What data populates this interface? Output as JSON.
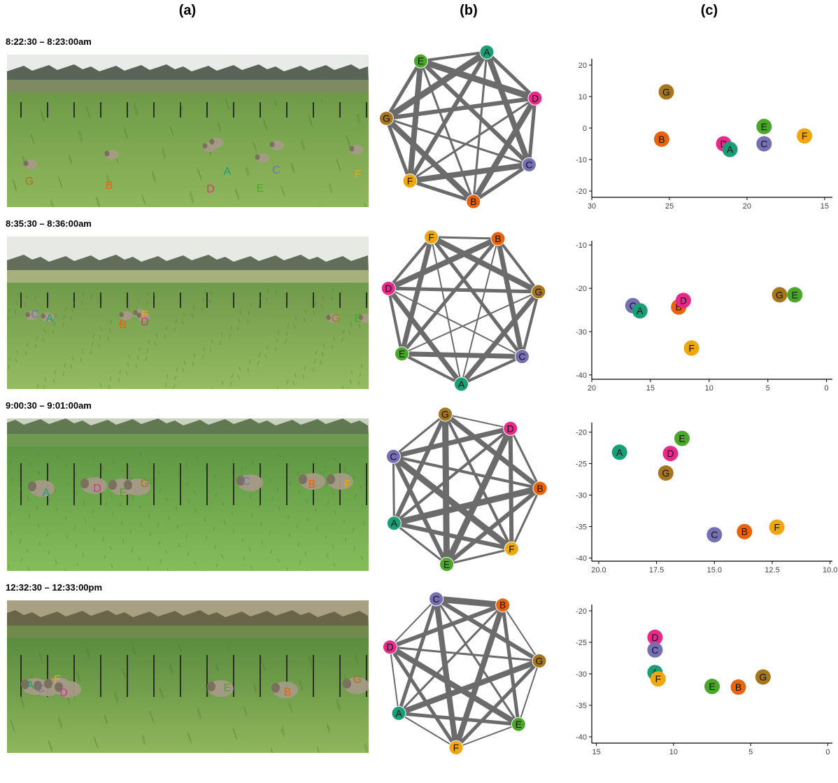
{
  "colors": {
    "A": "#1a9e77",
    "B": "#e8630a",
    "C": "#7570b3",
    "D": "#e7298a",
    "E": "#4ba72a",
    "F": "#f0a70f",
    "G": "#a6761d"
  },
  "column_labels": {
    "a": "(a)",
    "b": "(b)",
    "c": "(c)"
  },
  "panels": [
    {
      "time": "8:22:30 – 8:23:00am",
      "photo_labels": [
        "G",
        "B",
        "D",
        "A",
        "C",
        "E",
        "F"
      ],
      "network_nodes": [
        "A",
        "D",
        "C",
        "B",
        "F",
        "G",
        "E"
      ],
      "chart_data": {
        "type": "scatter",
        "xlim": [
          30,
          14.5
        ],
        "ylim": [
          -22,
          22
        ],
        "xticks": [
          30,
          25,
          20,
          15
        ],
        "yticks": [
          20,
          10,
          0,
          -10,
          -20
        ],
        "points": [
          {
            "label": "G",
            "x": 25.2,
            "y": 11.5
          },
          {
            "label": "B",
            "x": 25.5,
            "y": -3.5
          },
          {
            "label": "D",
            "x": 21.5,
            "y": -5
          },
          {
            "label": "A",
            "x": 21.1,
            "y": -6.8
          },
          {
            "label": "C",
            "x": 18.9,
            "y": -5
          },
          {
            "label": "E",
            "x": 18.9,
            "y": 0.5
          },
          {
            "label": "F",
            "x": 16.3,
            "y": -2.5
          }
        ]
      }
    },
    {
      "time": "8:35:30 – 8:36:00am",
      "photo_labels": [
        "C",
        "A",
        "F",
        "B",
        "D",
        "G",
        "E"
      ],
      "network_nodes": [
        "B",
        "G",
        "C",
        "A",
        "E",
        "D",
        "F"
      ],
      "chart_data": {
        "type": "scatter",
        "xlim": [
          20,
          -0.5
        ],
        "ylim": [
          -41,
          -9
        ],
        "xticks": [
          20,
          15,
          10,
          5,
          0
        ],
        "yticks": [
          -10,
          -20,
          -30,
          -40
        ],
        "points": [
          {
            "label": "C",
            "x": 16.5,
            "y": -24
          },
          {
            "label": "A",
            "x": 15.9,
            "y": -25.2
          },
          {
            "label": "B",
            "x": 12.6,
            "y": -24.3
          },
          {
            "label": "D",
            "x": 12.2,
            "y": -22.8
          },
          {
            "label": "F",
            "x": 11.5,
            "y": -33.8
          },
          {
            "label": "G",
            "x": 4,
            "y": -21.5
          },
          {
            "label": "E",
            "x": 2.7,
            "y": -21.5
          }
        ]
      }
    },
    {
      "time": "9:00:30 – 9:01:00am",
      "photo_labels": [
        "A",
        "D",
        "E",
        "G",
        "C",
        "B",
        "F"
      ],
      "network_nodes": [
        "D",
        "B",
        "F",
        "E",
        "A",
        "C",
        "G"
      ],
      "chart_data": {
        "type": "scatter",
        "xlim": [
          20.3,
          9.9
        ],
        "ylim": [
          -40.5,
          -18.5
        ],
        "xticks": [
          20.0,
          17.5,
          15.0,
          12.5,
          10.0
        ],
        "yticks": [
          -20,
          -25,
          -30,
          -35,
          -40
        ],
        "points": [
          {
            "label": "A",
            "x": 19.1,
            "y": -23.2
          },
          {
            "label": "E",
            "x": 16.4,
            "y": -21
          },
          {
            "label": "D",
            "x": 16.9,
            "y": -23.4
          },
          {
            "label": "G",
            "x": 17.1,
            "y": -26.5
          },
          {
            "label": "C",
            "x": 15.0,
            "y": -36.3
          },
          {
            "label": "B",
            "x": 13.7,
            "y": -35.8
          },
          {
            "label": "F",
            "x": 12.3,
            "y": -35.1
          }
        ]
      }
    },
    {
      "time": "12:32:30 – 12:33:00pm",
      "photo_labels": [
        "A",
        "C",
        "F",
        "D",
        "E",
        "B",
        "G"
      ],
      "network_nodes": [
        "B",
        "G",
        "E",
        "F",
        "A",
        "D",
        "C"
      ],
      "chart_data": {
        "type": "scatter",
        "xlim": [
          15.3,
          -0.3
        ],
        "ylim": [
          -41,
          -19
        ],
        "xticks": [
          15,
          10,
          5,
          0
        ],
        "yticks": [
          -20,
          -25,
          -30,
          -35,
          -40
        ],
        "points": [
          {
            "label": "D",
            "x": 11.2,
            "y": -24.2
          },
          {
            "label": "C",
            "x": 11.2,
            "y": -26.2
          },
          {
            "label": "A",
            "x": 11.2,
            "y": -29.8
          },
          {
            "label": "F",
            "x": 11.0,
            "y": -30.8
          },
          {
            "label": "E",
            "x": 7.5,
            "y": -32
          },
          {
            "label": "B",
            "x": 5.8,
            "y": -32.1
          },
          {
            "label": "G",
            "x": 4.2,
            "y": -30.5
          }
        ]
      }
    }
  ]
}
